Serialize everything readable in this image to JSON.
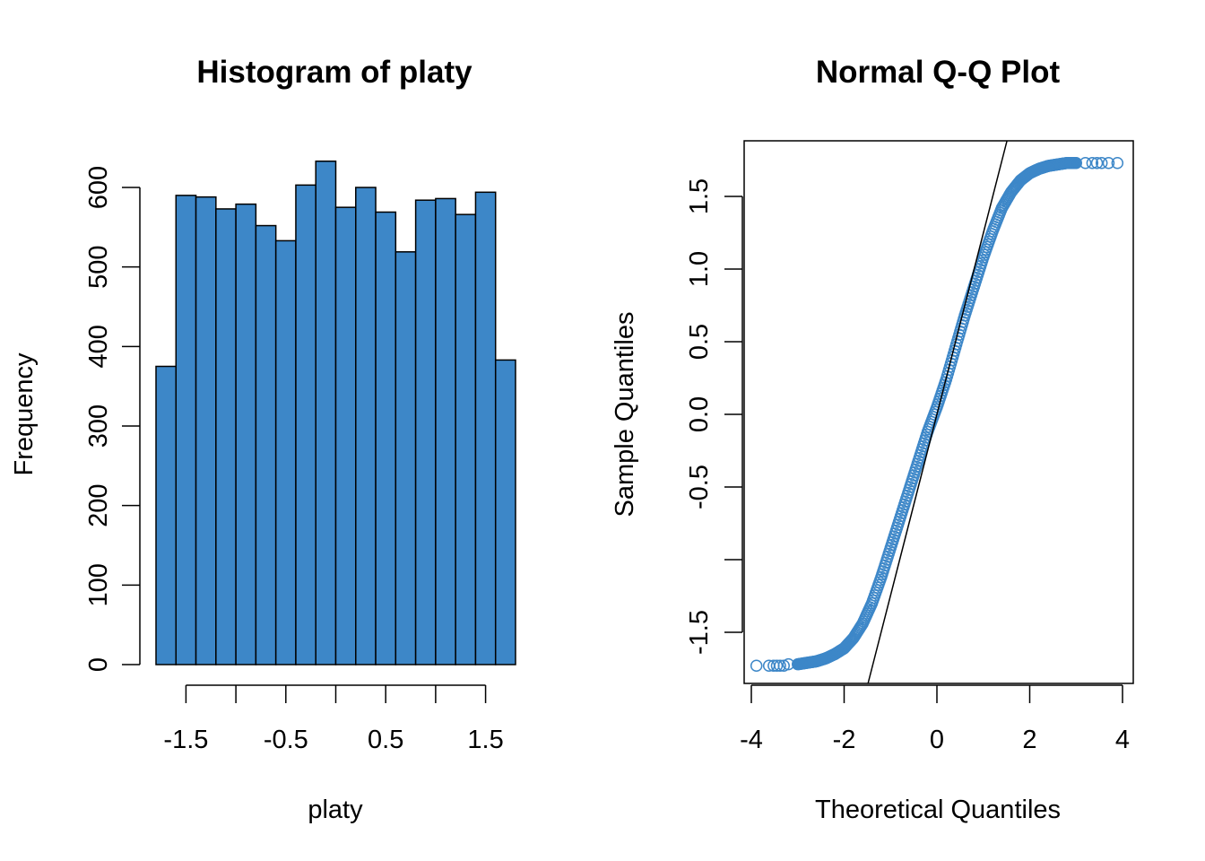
{
  "colors": {
    "fill": "#3D87C8",
    "stroke": "#000000",
    "point": "#3D87C8",
    "background": "#FFFFFF"
  },
  "chart_data": [
    {
      "type": "bar",
      "title": "Histogram of platy",
      "xlabel": "platy",
      "ylabel": "Frequency",
      "xlim": [
        -1.8,
        1.8
      ],
      "ylim": [
        0,
        600
      ],
      "xticks": [
        -1.5,
        -1.0,
        -0.5,
        0.0,
        0.5,
        1.0,
        1.5
      ],
      "xtick_labels": [
        "-1.5",
        "",
        "-0.5",
        "",
        "0.5",
        "",
        "1.5"
      ],
      "yticks": [
        0,
        100,
        200,
        300,
        400,
        500,
        600
      ],
      "ytick_labels": [
        "0",
        "100",
        "200",
        "300",
        "400",
        "500",
        "600"
      ],
      "bin_edges": [
        -1.8,
        -1.6,
        -1.4,
        -1.2,
        -1.0,
        -0.8,
        -0.6,
        -0.4,
        -0.2,
        0.0,
        0.2,
        0.4,
        0.6,
        0.8,
        1.0,
        1.2,
        1.4,
        1.6,
        1.8
      ],
      "values": [
        375,
        590,
        588,
        573,
        579,
        552,
        533,
        603,
        633,
        575,
        600,
        569,
        519,
        584,
        586,
        566,
        594,
        383
      ]
    },
    {
      "type": "scatter",
      "title": "Normal Q-Q Plot",
      "xlabel": "Theoretical Quantiles",
      "ylabel": "Sample Quantiles",
      "xlim": [
        -4.0,
        4.0
      ],
      "ylim": [
        -1.85,
        1.85
      ],
      "xticks": [
        -4,
        -2,
        0,
        2,
        4
      ],
      "xtick_labels": [
        "-4",
        "-2",
        "0",
        "2",
        "4"
      ],
      "yticks": [
        -1.5,
        -1.0,
        -0.5,
        0.0,
        0.5,
        1.0,
        1.5
      ],
      "ytick_labels": [
        "-1.5",
        "",
        "-0.5",
        "0.0",
        "0.5",
        "1.0",
        "1.5"
      ],
      "points": [
        [
          -3.89,
          -1.73
        ],
        [
          -3.62,
          -1.73
        ],
        [
          -3.52,
          -1.73
        ],
        [
          -3.45,
          -1.73
        ],
        [
          -3.38,
          -1.73
        ],
        [
          -3.3,
          -1.73
        ],
        [
          -3.2,
          -1.72
        ],
        [
          -3.0,
          -1.72
        ],
        [
          -2.8,
          -1.71
        ],
        [
          -2.6,
          -1.7
        ],
        [
          -2.4,
          -1.68
        ],
        [
          -2.2,
          -1.65
        ],
        [
          -2.0,
          -1.61
        ],
        [
          -1.8,
          -1.54
        ],
        [
          -1.6,
          -1.44
        ],
        [
          -1.4,
          -1.3
        ],
        [
          -1.2,
          -1.12
        ],
        [
          -1.0,
          -0.92
        ],
        [
          -0.8,
          -0.72
        ],
        [
          -0.6,
          -0.52
        ],
        [
          -0.4,
          -0.32
        ],
        [
          -0.2,
          -0.12
        ],
        [
          0.0,
          0.05
        ],
        [
          0.2,
          0.24
        ],
        [
          0.4,
          0.46
        ],
        [
          0.6,
          0.68
        ],
        [
          0.8,
          0.88
        ],
        [
          1.0,
          1.08
        ],
        [
          1.2,
          1.26
        ],
        [
          1.4,
          1.42
        ],
        [
          1.6,
          1.53
        ],
        [
          1.8,
          1.61
        ],
        [
          2.0,
          1.66
        ],
        [
          2.2,
          1.69
        ],
        [
          2.4,
          1.71
        ],
        [
          2.6,
          1.72
        ],
        [
          2.8,
          1.73
        ],
        [
          3.0,
          1.73
        ],
        [
          3.2,
          1.73
        ],
        [
          3.35,
          1.73
        ],
        [
          3.45,
          1.73
        ],
        [
          3.55,
          1.73
        ],
        [
          3.7,
          1.73
        ],
        [
          3.89,
          1.73
        ]
      ],
      "qqline": {
        "intercept": 0.0,
        "slope": 1.247
      }
    }
  ]
}
